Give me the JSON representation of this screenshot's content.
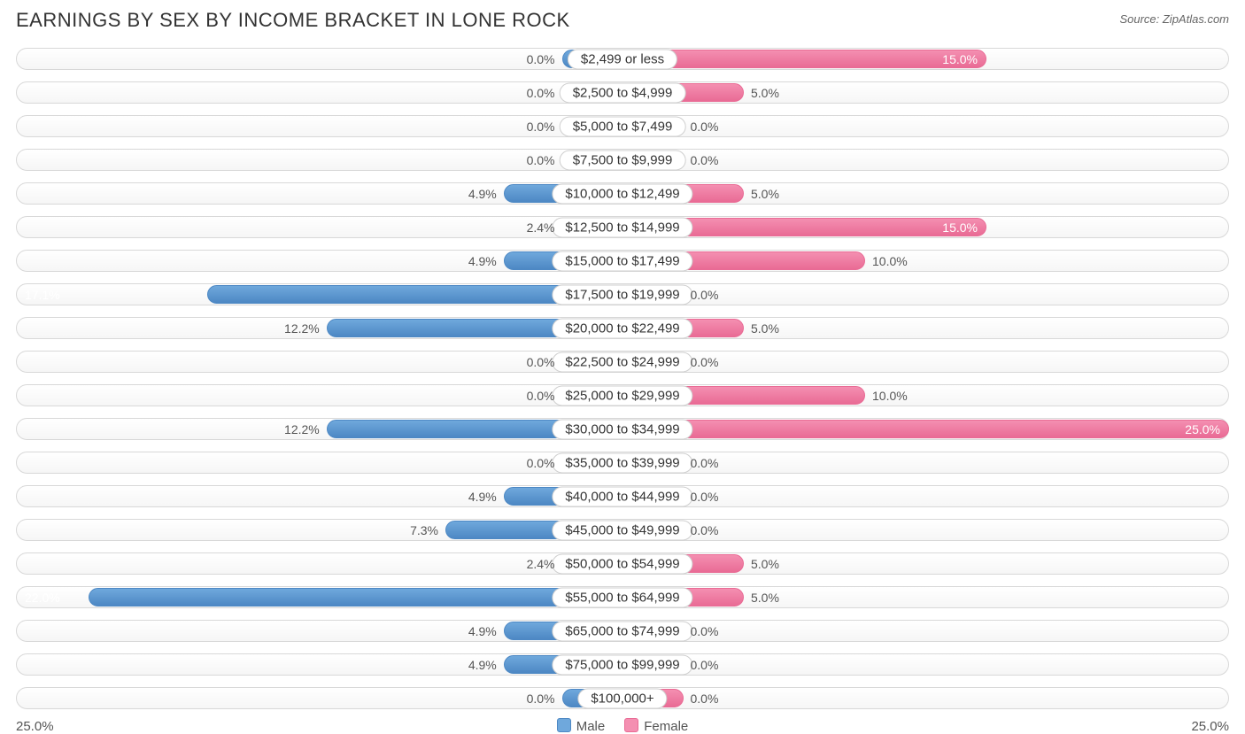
{
  "title": "EARNINGS BY SEX BY INCOME BRACKET IN LONE ROCK",
  "source": "Source: ZipAtlas.com",
  "axis_max": 25.0,
  "axis_label_left": "25.0%",
  "axis_label_right": "25.0%",
  "min_bar_pct": 2.5,
  "colors": {
    "male_fill": "#6fa8dc",
    "male_border": "#4d88c4",
    "female_fill": "#f48fb1",
    "female_border": "#e96b95",
    "track_border": "#d8d8d8",
    "background": "#ffffff",
    "text": "#555555"
  },
  "legend": {
    "male": "Male",
    "female": "Female"
  },
  "rows": [
    {
      "label": "$2,499 or less",
      "male": 0.0,
      "female": 15.0
    },
    {
      "label": "$2,500 to $4,999",
      "male": 0.0,
      "female": 5.0
    },
    {
      "label": "$5,000 to $7,499",
      "male": 0.0,
      "female": 0.0
    },
    {
      "label": "$7,500 to $9,999",
      "male": 0.0,
      "female": 0.0
    },
    {
      "label": "$10,000 to $12,499",
      "male": 4.9,
      "female": 5.0
    },
    {
      "label": "$12,500 to $14,999",
      "male": 2.4,
      "female": 15.0
    },
    {
      "label": "$15,000 to $17,499",
      "male": 4.9,
      "female": 10.0
    },
    {
      "label": "$17,500 to $19,999",
      "male": 17.1,
      "female": 0.0
    },
    {
      "label": "$20,000 to $22,499",
      "male": 12.2,
      "female": 5.0
    },
    {
      "label": "$22,500 to $24,999",
      "male": 0.0,
      "female": 0.0
    },
    {
      "label": "$25,000 to $29,999",
      "male": 0.0,
      "female": 10.0
    },
    {
      "label": "$30,000 to $34,999",
      "male": 12.2,
      "female": 25.0
    },
    {
      "label": "$35,000 to $39,999",
      "male": 0.0,
      "female": 0.0
    },
    {
      "label": "$40,000 to $44,999",
      "male": 4.9,
      "female": 0.0
    },
    {
      "label": "$45,000 to $49,999",
      "male": 7.3,
      "female": 0.0
    },
    {
      "label": "$50,000 to $54,999",
      "male": 2.4,
      "female": 5.0
    },
    {
      "label": "$55,000 to $64,999",
      "male": 22.0,
      "female": 5.0
    },
    {
      "label": "$65,000 to $74,999",
      "male": 4.9,
      "female": 0.0
    },
    {
      "label": "$75,000 to $99,999",
      "male": 4.9,
      "female": 0.0
    },
    {
      "label": "$100,000+",
      "male": 0.0,
      "female": 0.0
    }
  ]
}
